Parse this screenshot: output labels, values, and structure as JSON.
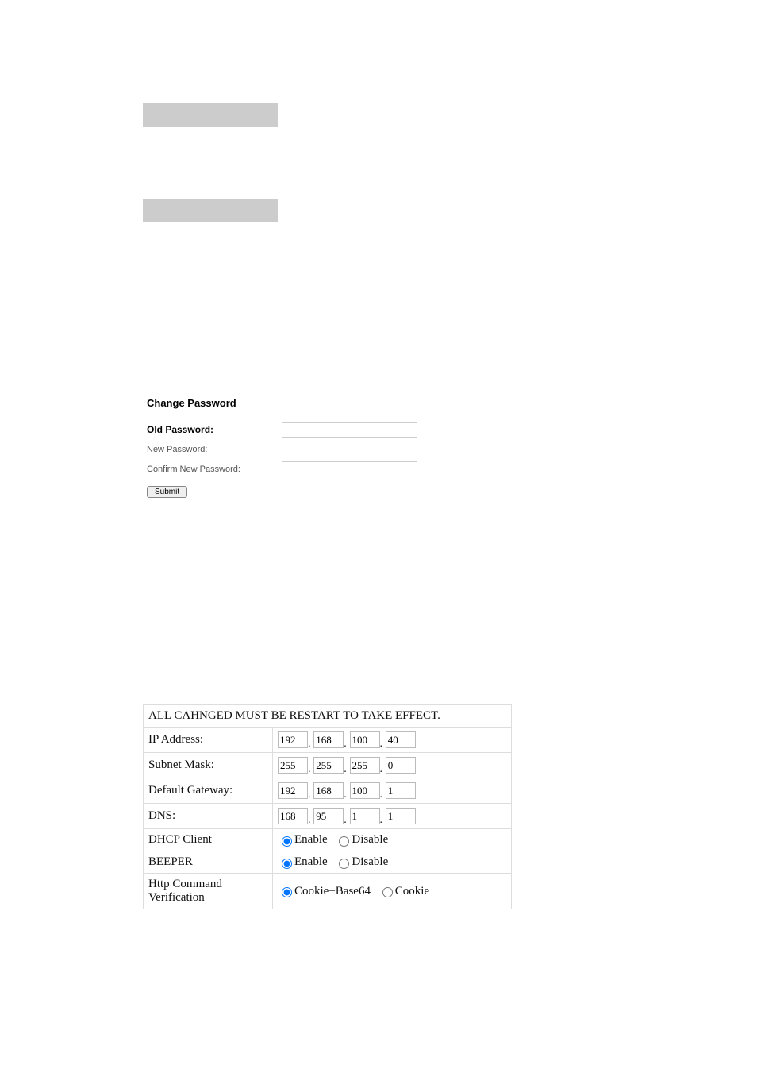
{
  "changePassword": {
    "title": "Change Password",
    "oldPasswordLabel": "Old Password:",
    "newPasswordLabel": "New Password:",
    "confirmNewPasswordLabel": "Confirm New Password:",
    "submitLabel": "Submit"
  },
  "networkTable": {
    "headerText": "ALL CAHNGED MUST BE RESTART TO TAKE EFFECT.",
    "rows": {
      "ipAddress": {
        "label": "IP Address:",
        "octets": [
          "192",
          "168",
          "100",
          "40"
        ]
      },
      "subnetMask": {
        "label": "Subnet Mask:",
        "octets": [
          "255",
          "255",
          "255",
          "0"
        ]
      },
      "defaultGateway": {
        "label": "Default Gateway:",
        "octets": [
          "192",
          "168",
          "100",
          "1"
        ]
      },
      "dns": {
        "label": "DNS:",
        "octets": [
          "168",
          "95",
          "1",
          "1"
        ]
      },
      "dhcpClient": {
        "label": "DHCP Client",
        "options": [
          "Enable",
          "Disable"
        ],
        "selected": "Enable"
      },
      "beeper": {
        "label": "BEEPER",
        "options": [
          "Enable",
          "Disable"
        ],
        "selected": "Enable"
      },
      "httpCommand": {
        "label": "Http Command Verification",
        "options": [
          "Cookie+Base64",
          "Cookie"
        ],
        "selected": "Cookie+Base64"
      }
    }
  }
}
